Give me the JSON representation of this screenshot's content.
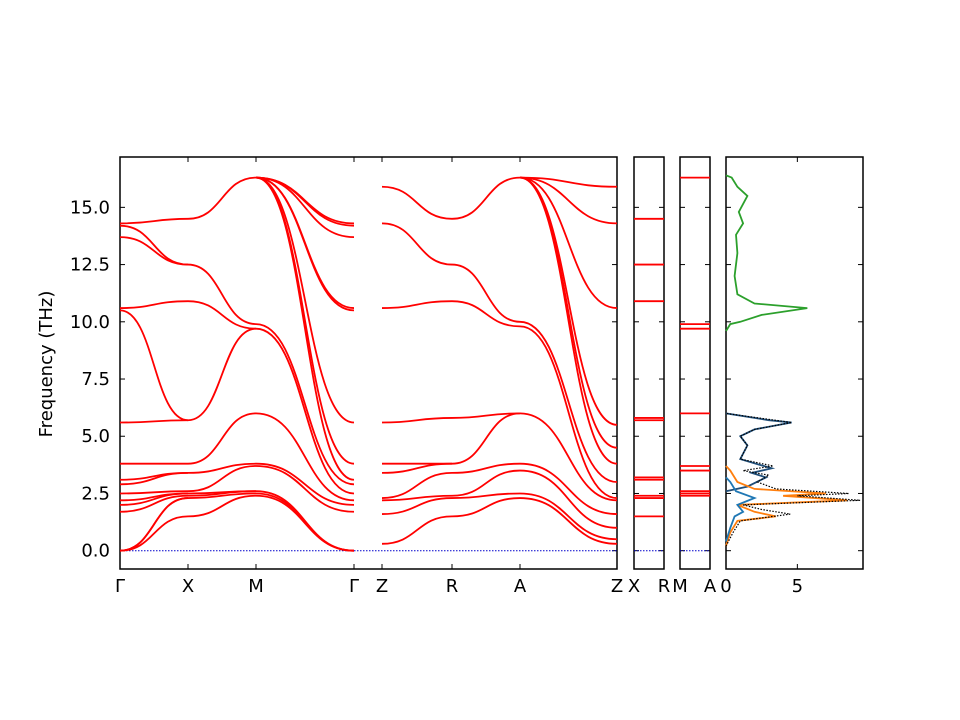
{
  "chart_data": [
    {
      "type": "line",
      "panel": "band-structure-main",
      "ylabel": "Frequency (THz)",
      "ylim": [
        -0.8,
        17.2
      ],
      "yticks": [
        "0.0",
        "2.5",
        "5.0",
        "7.5",
        "10.0",
        "12.5",
        "15.0"
      ],
      "ytick_values": [
        0,
        2.5,
        5,
        7.5,
        10,
        12.5,
        15
      ],
      "xticks": [
        "Γ",
        "X",
        "M",
        "Γ",
        "Z",
        "R",
        "A",
        "Z"
      ],
      "segments": [
        {
          "from": "Γ",
          "to": "X",
          "bands_at_start": [
            0,
            0,
            0,
            1.7,
            2.0,
            2.2,
            2.5,
            2.9,
            3.1,
            3.8,
            5.6,
            10.5,
            10.6,
            13.7,
            14.2,
            14.3
          ],
          "bands_at_end": [
            1.5,
            2.3,
            2.4,
            2.5,
            2.6,
            3.4,
            3.8,
            5.7,
            10.9,
            12.5,
            14.5
          ]
        },
        {
          "from": "X",
          "to": "M",
          "bands_at_end": [
            2.4,
            2.5,
            2.6,
            3.7,
            3.8,
            6.0,
            9.7,
            9.9,
            16.3
          ]
        },
        {
          "from": "M",
          "to": "Γ",
          "bands_at_end": [
            0,
            0,
            0,
            1.7,
            2.0,
            2.2,
            2.5,
            2.9,
            3.1,
            3.8,
            5.6,
            10.5,
            10.6,
            13.7,
            14.2,
            14.3
          ]
        },
        {
          "from": "Z",
          "to": "R",
          "bands_at_start": [
            0.3,
            1.6,
            2.2,
            2.3,
            3.4,
            3.8,
            5.6,
            10.6,
            14.3,
            15.9
          ],
          "bands_at_end": [
            1.5,
            2.3,
            2.4,
            3.4,
            3.8,
            5.8,
            10.9,
            12.5,
            14.5
          ]
        },
        {
          "from": "R",
          "to": "A",
          "bands_at_end": [
            2.3,
            2.5,
            3.5,
            3.8,
            6.0,
            9.8,
            10.0,
            16.3
          ]
        },
        {
          "from": "A",
          "to": "Z",
          "bands_at_end": [
            0.3,
            0.5,
            1.0,
            1.6,
            2.2,
            2.3,
            3.0,
            3.8,
            4.5,
            5.5,
            10.6,
            14.3,
            15.9
          ]
        }
      ],
      "series_color": "#ff0000",
      "zero_line_color": "#0000cc"
    },
    {
      "type": "line",
      "panel": "band-structure-XR",
      "xticks": [
        "X",
        "R"
      ],
      "bands": [
        1.5,
        2.3,
        2.4,
        3.1,
        3.2,
        5.7,
        5.8,
        10.9,
        12.5,
        14.5,
        0.0
      ]
    },
    {
      "type": "line",
      "panel": "band-structure-MA",
      "xticks": [
        "M",
        "A"
      ],
      "bands": [
        2.4,
        2.5,
        2.6,
        3.5,
        3.7,
        6.0,
        9.7,
        9.9,
        16.3,
        0.0
      ]
    },
    {
      "type": "line",
      "panel": "phonon-dos",
      "xlim": [
        0,
        9.6
      ],
      "xticks": [
        "0",
        "5"
      ],
      "xtick_values": [
        0,
        5
      ],
      "series": [
        {
          "color": "#2ca02c",
          "points": [
            [
              0.0,
              9.6
            ],
            [
              0.3,
              9.9
            ],
            [
              1.0,
              10.0
            ],
            [
              2.5,
              10.3
            ],
            [
              5.7,
              10.6
            ],
            [
              2.0,
              10.8
            ],
            [
              0.8,
              11.2
            ],
            [
              0.6,
              12.0
            ],
            [
              0.8,
              13.0
            ],
            [
              0.7,
              13.8
            ],
            [
              1.2,
              14.3
            ],
            [
              0.9,
              14.8
            ],
            [
              1.5,
              15.5
            ],
            [
              0.8,
              15.9
            ],
            [
              0.4,
              16.3
            ],
            [
              0.0,
              16.4
            ]
          ]
        },
        {
          "color": "#1f4e79",
          "points": [
            [
              0.0,
              2.6
            ],
            [
              1.5,
              2.8
            ],
            [
              2.8,
              3.2
            ],
            [
              1.8,
              3.4
            ],
            [
              3.2,
              3.6
            ],
            [
              1.0,
              4.0
            ],
            [
              1.5,
              4.6
            ],
            [
              1.0,
              5.0
            ],
            [
              2.0,
              5.3
            ],
            [
              4.6,
              5.6
            ],
            [
              3.0,
              5.7
            ],
            [
              2.0,
              5.8
            ],
            [
              0.5,
              5.95
            ],
            [
              0.0,
              6.0
            ]
          ]
        },
        {
          "color": "#ff7f0e",
          "points": [
            [
              0.0,
              0.2
            ],
            [
              0.3,
              0.8
            ],
            [
              0.8,
              1.3
            ],
            [
              3.5,
              1.5
            ],
            [
              2.0,
              1.7
            ],
            [
              0.8,
              2.0
            ],
            [
              8.5,
              2.2
            ],
            [
              4.0,
              2.4
            ],
            [
              7.0,
              2.5
            ],
            [
              2.0,
              2.7
            ],
            [
              0.8,
              3.0
            ],
            [
              0.3,
              3.5
            ],
            [
              0.0,
              3.7
            ]
          ]
        },
        {
          "color": "#1f77b4",
          "points": [
            [
              0.0,
              0.4
            ],
            [
              0.3,
              1.0
            ],
            [
              0.6,
              1.5
            ],
            [
              1.2,
              1.7
            ],
            [
              0.8,
              2.0
            ],
            [
              2.0,
              2.3
            ],
            [
              0.7,
              2.6
            ],
            [
              0.3,
              3.0
            ],
            [
              0.0,
              3.2
            ]
          ]
        },
        {
          "color": "#000000",
          "style": "dotted",
          "points": [
            [
              0.0,
              0.2
            ],
            [
              0.5,
              0.8
            ],
            [
              1.0,
              1.3
            ],
            [
              4.5,
              1.6
            ],
            [
              2.5,
              1.8
            ],
            [
              1.2,
              2.0
            ],
            [
              9.4,
              2.2
            ],
            [
              5.0,
              2.4
            ],
            [
              8.6,
              2.5
            ],
            [
              3.5,
              2.7
            ],
            [
              2.2,
              3.0
            ],
            [
              3.0,
              3.3
            ],
            [
              1.2,
              3.5
            ],
            [
              3.3,
              3.7
            ],
            [
              1.0,
              4.0
            ],
            [
              1.5,
              4.6
            ],
            [
              1.0,
              5.0
            ],
            [
              2.0,
              5.3
            ],
            [
              4.6,
              5.6
            ],
            [
              0.0,
              6.0
            ]
          ]
        }
      ]
    }
  ]
}
